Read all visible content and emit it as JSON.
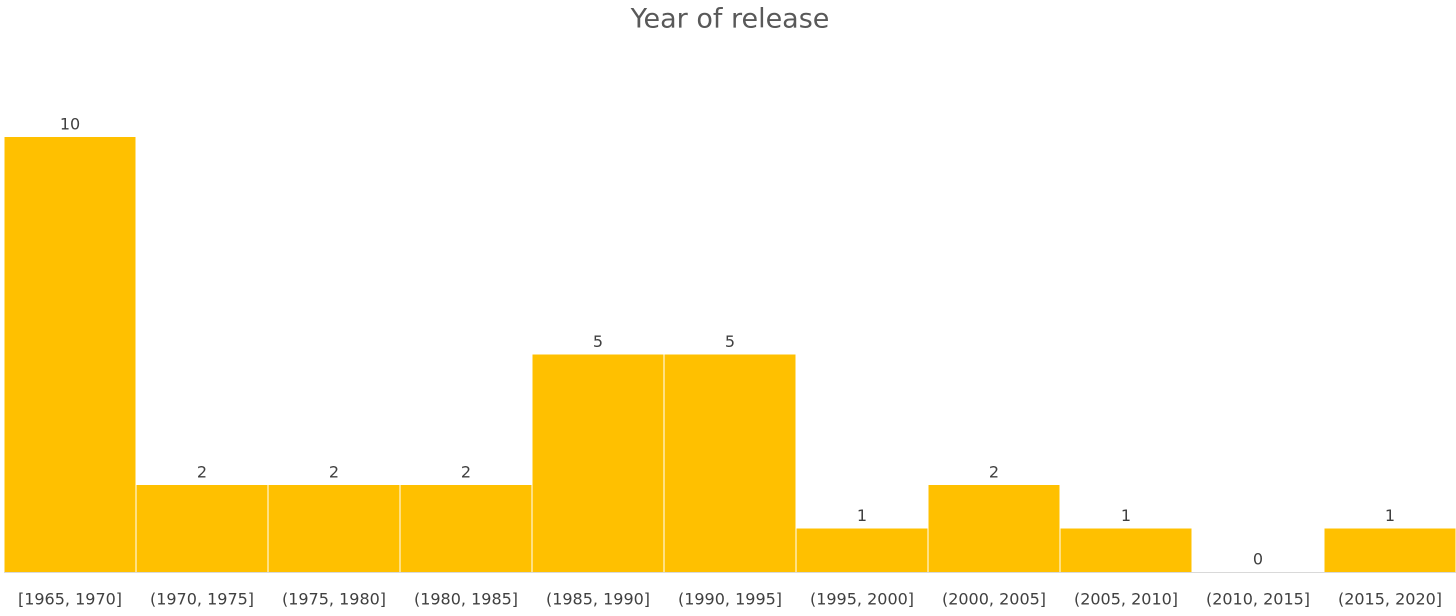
{
  "chart_data": {
    "type": "bar",
    "title": "Year of release",
    "categories": [
      "[1965, 1970]",
      "(1970, 1975]",
      "(1975, 1980]",
      "(1980, 1985]",
      "(1985, 1990]",
      "(1990, 1995]",
      "(1995, 2000]",
      "(2000, 2005]",
      "(2005, 2010]",
      "(2010, 2015]",
      "(2015, 2020]"
    ],
    "values": [
      10,
      2,
      2,
      2,
      5,
      5,
      1,
      2,
      1,
      0,
      1
    ],
    "color": "#ffc000"
  }
}
